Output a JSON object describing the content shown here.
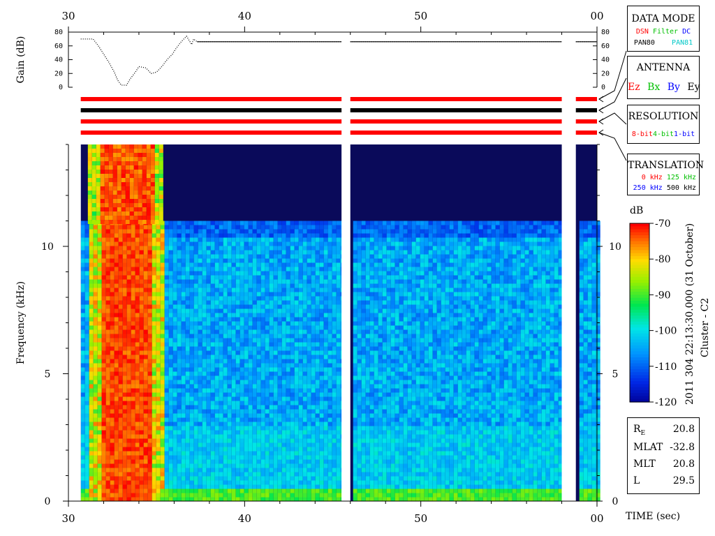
{
  "chart_data": [
    {
      "type": "line",
      "panel": "gain",
      "ylabel": "Gain (dB)",
      "ylim": [
        0,
        80
      ],
      "y_ticks": [
        "80",
        "60",
        "40",
        "20",
        "0"
      ],
      "x_ticks": [
        "30",
        "40",
        "50",
        "00"
      ],
      "xlim": [
        30,
        60
      ],
      "series": [
        {
          "x": [
            30.7,
            31.4,
            31.7,
            32.0,
            32.3,
            32.6,
            32.8,
            33.0,
            33.3,
            33.5,
            33.8,
            34.0,
            34.4,
            34.7,
            35.0,
            35.3,
            35.6,
            35.9,
            36.1,
            36.4,
            36.7,
            37.0,
            37.1,
            37.3,
            45.5,
            46.0,
            58.0,
            58.8,
            60.0
          ],
          "y": [
            70,
            70,
            60,
            48,
            36,
            22,
            10,
            3,
            3,
            12,
            22,
            30,
            28,
            20,
            22,
            30,
            40,
            48,
            56,
            66,
            74,
            62,
            70,
            66,
            66,
            66,
            66,
            66,
            66
          ]
        }
      ],
      "gaps": [
        [
          45.5,
          46.0
        ],
        [
          58.0,
          58.8
        ]
      ]
    },
    {
      "type": "heatmap",
      "panel": "spectrogram",
      "ylabel": "Frequency (kHz)",
      "xlabel": "TIME (sec)",
      "ylim": [
        0,
        14
      ],
      "xlim": [
        30,
        60
      ],
      "y_ticks": [
        "0",
        "5",
        "10"
      ],
      "x_ticks": [
        "30",
        "40",
        "50",
        "00"
      ],
      "colorbar": {
        "label": "dB",
        "range": [
          -120,
          -70
        ],
        "ticks": [
          "-70",
          "-80",
          "-90",
          "-100",
          "-110",
          "-120"
        ]
      },
      "data_extent": [
        30.7,
        60
      ],
      "gaps": [
        [
          45.5,
          46.0
        ],
        [
          58.0,
          58.8
        ]
      ],
      "event": {
        "start": 31.1,
        "end": 35.3,
        "peak_db": -70
      }
    }
  ],
  "status_bars": [
    {
      "color": "#ff0000"
    },
    {
      "color": "#000000"
    },
    {
      "color": "#ff0000"
    },
    {
      "color": "#ff0000"
    }
  ],
  "legends": {
    "data_mode": {
      "title": "DATA MODE",
      "items": [
        {
          "label": "DSN",
          "color": "#ff0000"
        },
        {
          "label": "Filter",
          "color": "#00c000"
        },
        {
          "label": "DC",
          "color": "#0000ff"
        },
        {
          "label": "PAN80",
          "color": "#000000"
        },
        {
          "label": "PAN81",
          "color": "#00c8c8"
        }
      ]
    },
    "antenna": {
      "title": "ANTENNA",
      "items": [
        {
          "label": "Ez",
          "color": "#ff0000"
        },
        {
          "label": "Bx",
          "color": "#00c000"
        },
        {
          "label": "By",
          "color": "#0000ff"
        },
        {
          "label": "Ey",
          "color": "#000000"
        }
      ]
    },
    "resolution": {
      "title": "RESOLUTION",
      "items": [
        {
          "label": "8-bit",
          "color": "#ff0000"
        },
        {
          "label": "4-bit",
          "color": "#00c000"
        },
        {
          "label": "1-bit",
          "color": "#0000ff"
        }
      ]
    },
    "translation": {
      "title": "TRANSLATION",
      "items": [
        {
          "label": "0 kHz",
          "color": "#ff0000"
        },
        {
          "label": "125 kHz",
          "color": "#00c000"
        },
        {
          "label": "250 kHz",
          "color": "#0000ff"
        },
        {
          "label": "500 kHz",
          "color": "#000000"
        }
      ]
    }
  },
  "info": {
    "timestamp": "2011 304 22:13:30.000 (31 October)",
    "spacecraft": "Cluster - C2"
  },
  "position": [
    {
      "key": "R",
      "sub": "E",
      "value": "20.8"
    },
    {
      "key": "MLAT",
      "sub": "",
      "value": "-32.8"
    },
    {
      "key": "MLT",
      "sub": "",
      "value": "20.8"
    },
    {
      "key": "L",
      "sub": "",
      "value": "29.5"
    }
  ]
}
